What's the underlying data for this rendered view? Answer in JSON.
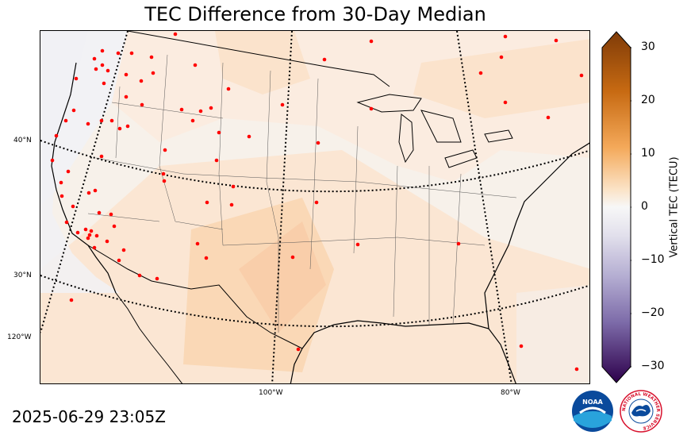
{
  "title": "TEC Difference from 30-Day Median",
  "timestamp": "2025-06-29 23:05Z",
  "latitude_labels": [
    "40°N",
    "30°N"
  ],
  "longitude_labels": [
    "120°W",
    "100°W",
    "80°W"
  ],
  "colorbar": {
    "label": "Vertical TEC (TECU)",
    "ticks": [
      "30",
      "20",
      "10",
      "0",
      "−10",
      "−20",
      "−30"
    ],
    "range": [
      -30,
      30
    ],
    "positive_color": "#7f3b08",
    "negative_color": "#2d004b"
  },
  "logos": {
    "noaa_text": "NOAA",
    "nws_text": "NATIONAL WEATHER SERVICE"
  },
  "station_color": "#ff0000"
}
